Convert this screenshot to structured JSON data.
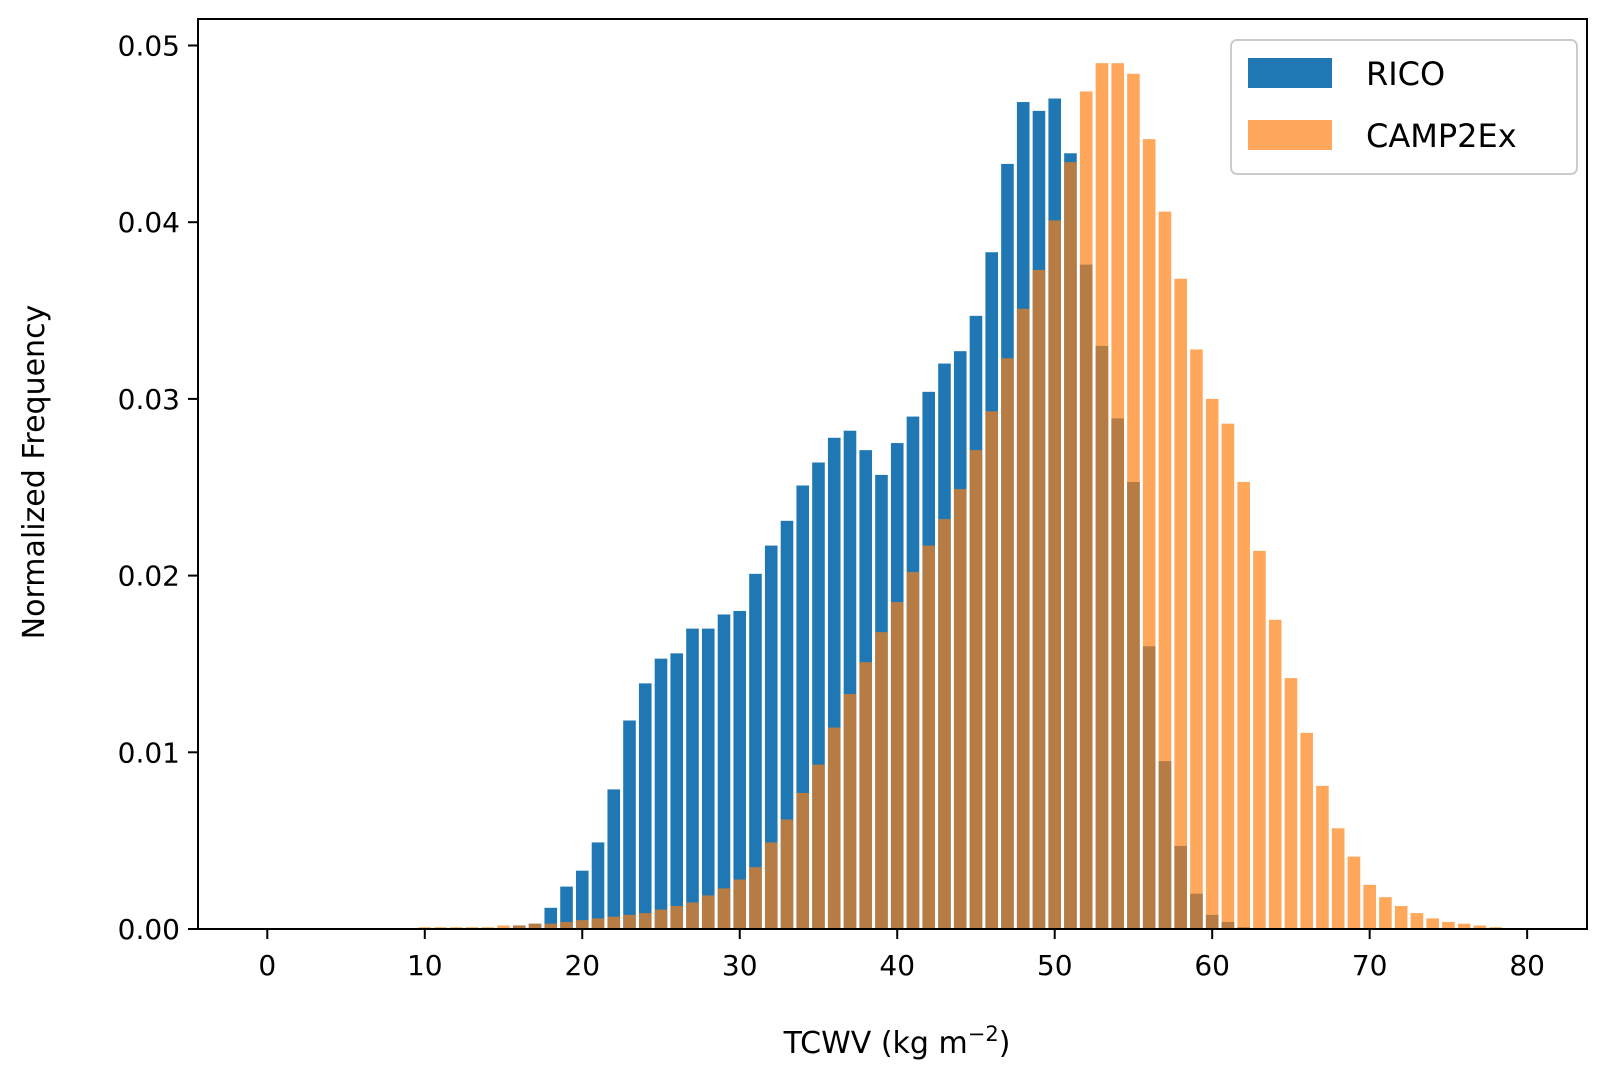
{
  "chart_data": {
    "type": "bar",
    "xlabel": "TCWV (kg m",
    "xlabel_sup": "−2",
    "xlabel_end": ")",
    "ylabel": "Normalized Frequency",
    "xlim": [
      -4.4,
      83.8
    ],
    "ylim": [
      0,
      0.0515
    ],
    "xticks": [
      0,
      10,
      20,
      30,
      40,
      50,
      60,
      70,
      80
    ],
    "yticks": [
      0,
      0.01,
      0.02,
      0.03,
      0.04,
      0.05
    ],
    "ytick_labels": [
      "0.00",
      "0.01",
      "0.02",
      "0.03",
      "0.04",
      "0.05"
    ],
    "bar_width": 0.8,
    "legend_position": "top-right",
    "x": [
      10,
      11,
      12,
      13,
      14,
      15,
      16,
      17,
      18,
      19,
      20,
      21,
      22,
      23,
      24,
      25,
      26,
      27,
      28,
      29,
      30,
      31,
      32,
      33,
      34,
      35,
      36,
      37,
      38,
      39,
      40,
      41,
      42,
      43,
      44,
      45,
      46,
      47,
      48,
      49,
      50,
      51,
      52,
      53,
      54,
      55,
      56,
      57,
      58,
      59,
      60,
      61,
      62,
      63,
      64,
      65,
      66,
      67,
      68,
      69,
      70,
      71,
      72,
      73,
      74,
      75,
      76,
      77,
      78
    ],
    "series": [
      {
        "name": "RICO",
        "color": "#1f77b4",
        "opacity": 1,
        "values": [
          0,
          0,
          0,
          0,
          0,
          0,
          0.0002,
          0.0003,
          0.0012,
          0.0024,
          0.0033,
          0.0049,
          0.0079,
          0.0118,
          0.0139,
          0.0153,
          0.0156,
          0.017,
          0.017,
          0.0178,
          0.018,
          0.0201,
          0.0217,
          0.0231,
          0.0251,
          0.0264,
          0.0278,
          0.0282,
          0.0271,
          0.0257,
          0.0275,
          0.029,
          0.0304,
          0.032,
          0.0327,
          0.0347,
          0.0383,
          0.0433,
          0.0468,
          0.0463,
          0.047,
          0.0439,
          0.0376,
          0.033,
          0.0289,
          0.0253,
          0.016,
          0.0095,
          0.0047,
          0.002,
          0.0008,
          0.0004,
          0.0001,
          0,
          0,
          0,
          0,
          0,
          0,
          0,
          0,
          0,
          0,
          0,
          0,
          0,
          0,
          0,
          0
        ]
      },
      {
        "name": "CAMP2Ex",
        "color": "#ff7f0e",
        "opacity": 0.68,
        "values": [
          0.0001,
          0.0001,
          0.0001,
          0.0001,
          0.0001,
          0.0002,
          0.0002,
          0.0003,
          0.0003,
          0.0004,
          0.0005,
          0.0006,
          0.0007,
          0.0008,
          0.0009,
          0.0011,
          0.0013,
          0.0015,
          0.0019,
          0.0023,
          0.0028,
          0.0035,
          0.0049,
          0.0062,
          0.0077,
          0.0093,
          0.0114,
          0.0133,
          0.0151,
          0.0168,
          0.0185,
          0.0202,
          0.0217,
          0.0232,
          0.0249,
          0.0271,
          0.0293,
          0.0323,
          0.0351,
          0.0373,
          0.0401,
          0.0434,
          0.0474,
          0.049,
          0.049,
          0.0484,
          0.0447,
          0.0406,
          0.0368,
          0.0328,
          0.03,
          0.0286,
          0.0253,
          0.0214,
          0.0175,
          0.0142,
          0.0111,
          0.0081,
          0.0057,
          0.0041,
          0.0025,
          0.0018,
          0.0013,
          0.0009,
          0.0006,
          0.0004,
          0.0003,
          0.0002,
          0.0001
        ]
      }
    ]
  }
}
